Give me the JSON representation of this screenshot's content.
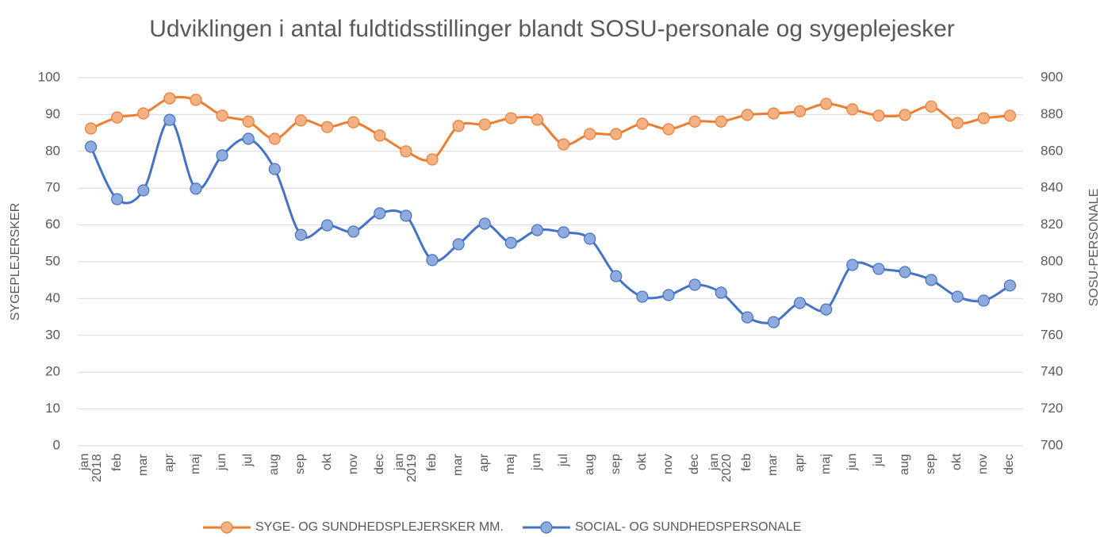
{
  "chart_data": {
    "type": "line",
    "title": "Udviklingen i antal fuldtidsstillinger blandt SOSU-personale og sygeplejesker",
    "y_label": "SYGEPLEJERSKER",
    "y2_label": "SOSU-PERSONALE",
    "categories": [
      "jan\n2018",
      "feb",
      "mar",
      "apr",
      "maj",
      "jun",
      "jul",
      "aug",
      "sep",
      "okt",
      "nov",
      "dec",
      "jan\n2019",
      "feb",
      "mar",
      "apr",
      "maj",
      "jun",
      "jul",
      "aug",
      "sep",
      "okt",
      "nov",
      "dec",
      "jan\n2020",
      "feb",
      "mar",
      "apr",
      "maj",
      "jun",
      "jul",
      "aug",
      "sep",
      "okt",
      "nov",
      "dec"
    ],
    "series": [
      {
        "name": "SYGE- OG SUNDHEDSPLEJERSKER MM.",
        "color": "#ed7d31",
        "marker_color": "#f4b183",
        "values": [
          86.2,
          89.2,
          90.3,
          94.4,
          94,
          89.7,
          88.1,
          83.4,
          88.4,
          86.6,
          87.9,
          84.3,
          80,
          77.8,
          86.9,
          87.3,
          89,
          88.6,
          81.9,
          84.7,
          84.7,
          87.5,
          86,
          88.1,
          88.1,
          89.9,
          90.3,
          90.9,
          92.9,
          91.4,
          89.7,
          89.9,
          92.2,
          87.7,
          89,
          89.7
        ]
      },
      {
        "name": "SOCIAL- OG SUNDHEDSPERSONALE",
        "color": "#4472c4",
        "marker_color": "#8faadc",
        "axis": "y2",
        "values": [
          862.5,
          834,
          838.8,
          877.1,
          839.7,
          857.8,
          866.8,
          850.4,
          814.6,
          819.8,
          816.4,
          826.3,
          825,
          800.9,
          809.5,
          820.7,
          810.3,
          817.2,
          816,
          812.5,
          792.2,
          781,
          781.9,
          787.5,
          783.2,
          769.8,
          767.2,
          777.6,
          774.1,
          798.3,
          796.1,
          794.4,
          790.1,
          781,
          778.9,
          787.1
        ]
      }
    ],
    "ylim": [
      0,
      100
    ],
    "yticks": [
      0,
      10,
      20,
      30,
      40,
      50,
      60,
      70,
      80,
      90,
      100
    ],
    "y2lim": [
      700,
      900
    ],
    "y2ticks": [
      700,
      720,
      740,
      760,
      780,
      800,
      820,
      840,
      860,
      880,
      900
    ],
    "grid": true,
    "legend": "bottom"
  }
}
